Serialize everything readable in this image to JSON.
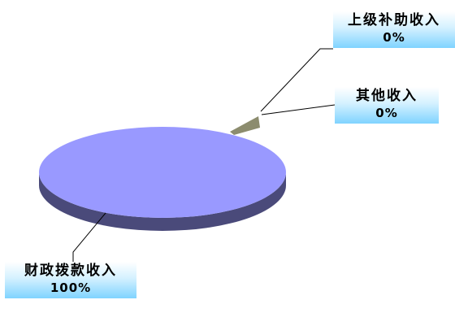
{
  "chart_data": {
    "type": "pie",
    "title": "",
    "slices": [
      {
        "label": "财政拨款收入",
        "value": 100,
        "display": "100%"
      },
      {
        "label": "其他收入",
        "value": 0,
        "display": "0%"
      },
      {
        "label": "上级补助收入",
        "value": 0,
        "display": "0%"
      }
    ],
    "colors": {
      "fiscal_top": "#9999ff",
      "fiscal_side": "#4a4a7a",
      "other_slice": "#8c8c6e",
      "label_gradient_top": "#ffffff",
      "label_gradient_bottom": "#7fd3ff"
    },
    "three_d": true
  },
  "labels": {
    "superior": {
      "name": "上级补助收入",
      "pct": "0%"
    },
    "other": {
      "name": "其他收入",
      "pct": "0%"
    },
    "fiscal": {
      "name": "财政拨款收入",
      "pct": "100%"
    }
  }
}
